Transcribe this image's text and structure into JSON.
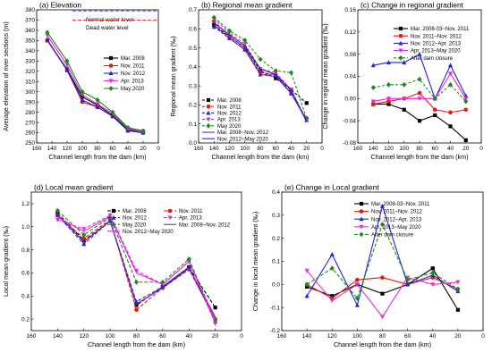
{
  "figure": {
    "colors": {
      "black": "#000000",
      "red": "#e8190f",
      "blue": "#1f24d6",
      "magenta": "#e52ad8",
      "green": "#1b8a1b",
      "purple": "#6b22c2",
      "ref_blue": "#2b44d6",
      "ref_red": "#e8190f"
    }
  },
  "chart_data": [
    {
      "id": "a",
      "type": "line",
      "title": "(a) Elevation",
      "xlabel": "Channel length from the dam (km)",
      "ylabel": "Average elevation of river sections (m)",
      "xlim": [
        160,
        0
      ],
      "ylim": [
        250,
        380
      ],
      "xticks": [
        160,
        140,
        120,
        100,
        80,
        60,
        40,
        20,
        0
      ],
      "yticks": [
        250,
        260,
        270,
        280,
        290,
        300,
        310,
        320,
        330,
        340,
        350,
        360,
        370,
        380
      ],
      "reference_lines": [
        {
          "label": "Normal water level",
          "y": 380,
          "color": "ref_blue",
          "dash": "4,2"
        },
        {
          "label": "Dead water level",
          "y": 370,
          "color": "ref_red",
          "dash": "4,2"
        }
      ],
      "legend_position": "right",
      "x": [
        146,
        120,
        100,
        80,
        60,
        40,
        20
      ],
      "series": [
        {
          "name": "Mar. 2008",
          "color": "black",
          "marker": "square",
          "values": [
            350,
            322,
            295,
            287,
            277,
            263,
            261
          ]
        },
        {
          "name": "Nov. 2011",
          "color": "red",
          "marker": "circle",
          "values": [
            350,
            321,
            290,
            285,
            276,
            262,
            260
          ]
        },
        {
          "name": "Nov. 2012",
          "color": "blue",
          "marker": "triangle-up",
          "values": [
            351,
            321,
            292,
            285,
            276,
            262,
            260
          ]
        },
        {
          "name": "Apr. 2013",
          "color": "magenta",
          "marker": "triangle-down",
          "values": [
            355,
            326,
            297,
            288,
            279,
            264,
            261
          ]
        },
        {
          "name": "May 2020",
          "color": "green",
          "marker": "diamond",
          "values": [
            358,
            330,
            300,
            292,
            280,
            265,
            262
          ]
        }
      ]
    },
    {
      "id": "b",
      "type": "line",
      "title": "(b)     Regional mean gradient",
      "xlabel": "Channel length from the dam (km)",
      "ylabel": "Regional mean gradient (‰)",
      "xlim": [
        160,
        0
      ],
      "ylim": [
        0.0,
        0.7
      ],
      "xticks": [
        160,
        140,
        120,
        100,
        80,
        60,
        40,
        20,
        0
      ],
      "yticks": [
        0.0,
        0.1,
        0.2,
        0.3,
        0.4,
        0.5,
        0.6,
        0.7
      ],
      "legend_position": "bottom-left",
      "x": [
        140,
        120,
        100,
        80,
        60,
        40,
        20
      ],
      "series": [
        {
          "name": "Mar. 2008",
          "color": "black",
          "dash": "3,2",
          "marker": "square",
          "values": [
            0.62,
            0.56,
            0.5,
            0.38,
            0.34,
            0.28,
            0.21
          ]
        },
        {
          "name": "Nov. 2011",
          "color": "red",
          "dash": "3,2",
          "marker": "circle",
          "values": [
            0.64,
            0.56,
            0.5,
            0.37,
            0.36,
            0.26,
            0.13
          ]
        },
        {
          "name": "Nov. 2012",
          "color": "blue",
          "dash": "3,2",
          "marker": "triangle-up",
          "values": [
            0.61,
            0.55,
            0.49,
            0.36,
            0.36,
            0.26,
            0.12
          ]
        },
        {
          "name": "Apr. 2013",
          "color": "magenta",
          "dash": "3,2",
          "marker": "triangle-down",
          "values": [
            0.65,
            0.58,
            0.52,
            0.39,
            0.37,
            0.28,
            0.12
          ]
        },
        {
          "name": "May 2020",
          "color": "green",
          "dash": "3,2",
          "marker": "diamond",
          "values": [
            0.66,
            0.59,
            0.54,
            0.44,
            0.38,
            0.37,
            0.13
          ]
        },
        {
          "name": "Mar. 2008~Nov. 2012",
          "color": "purple",
          "marker": "none",
          "values": [
            0.62,
            0.55,
            0.49,
            0.36,
            0.35,
            0.26,
            0.12
          ]
        },
        {
          "name": "Nov. 2012~May 2020",
          "color": "blue",
          "marker": "none",
          "values": [
            0.63,
            0.57,
            0.51,
            0.39,
            0.36,
            0.28,
            0.11
          ]
        }
      ]
    },
    {
      "id": "c",
      "type": "line",
      "title": "(c)     Change in regional  gradient",
      "xlabel": "Channel length from the dam (km)",
      "ylabel": "Change in reginal mean gradient (‰)",
      "xlim": [
        160,
        0
      ],
      "ylim": [
        -0.08,
        0.16
      ],
      "xticks": [
        160,
        140,
        120,
        100,
        80,
        60,
        40,
        20,
        0
      ],
      "yticks": [
        -0.08,
        -0.04,
        0.0,
        0.04,
        0.08,
        0.12,
        0.16
      ],
      "legend_position": "top-right",
      "x": [
        140,
        120,
        100,
        80,
        60,
        40,
        20
      ],
      "series": [
        {
          "name": "Mar. 2008-03~Nov. 2011",
          "color": "black",
          "marker": "square",
          "values": [
            -0.01,
            -0.01,
            -0.02,
            -0.04,
            -0.03,
            -0.05,
            -0.075
          ]
        },
        {
          "name": "Nov. 2011~Nov. 2012",
          "color": "red",
          "marker": "circle",
          "values": [
            -0.01,
            -0.005,
            0.0,
            0.01,
            -0.02,
            -0.025,
            -0.02
          ]
        },
        {
          "name": "Nov. 2012~Apr. 2013",
          "color": "blue",
          "marker": "triangle-up",
          "values": [
            0.06,
            0.065,
            0.065,
            0.08,
            0.0,
            0.06,
            0.005
          ]
        },
        {
          "name": "Apr. 2013~May 2020",
          "color": "magenta",
          "marker": "triangle-down",
          "values": [
            -0.005,
            0.0,
            0.0,
            0.0,
            0.0,
            0.045,
            0.0
          ]
        },
        {
          "name": "After dam closure",
          "color": "green",
          "dash": "3,2",
          "marker": "diamond",
          "values": [
            0.02,
            0.025,
            0.025,
            0.035,
            0.0,
            0.025,
            -0.005
          ]
        }
      ]
    },
    {
      "id": "d",
      "type": "line",
      "title": "(d)     Local mean gradient",
      "xlabel": "Channel length from the dam (km)",
      "ylabel": "Local mean gradient (‰)",
      "xlim": [
        160,
        0
      ],
      "ylim": [
        0.1,
        1.3
      ],
      "xticks": [
        160,
        140,
        120,
        100,
        80,
        60,
        40,
        20,
        0
      ],
      "yticks": [
        0.2,
        0.4,
        0.6,
        0.8,
        1.0,
        1.2
      ],
      "legend_position": "top-right",
      "x": [
        140,
        120,
        100,
        80,
        60,
        40,
        20
      ],
      "series": [
        {
          "name": "Mar. 2008",
          "color": "black",
          "dash": "4,2",
          "marker": "square",
          "values": [
            1.12,
            0.88,
            1.05,
            0.32,
            0.48,
            0.65,
            0.3
          ]
        },
        {
          "name": "Nov. 2011",
          "color": "red",
          "dash": "4,2",
          "marker": "circle",
          "values": [
            1.1,
            0.9,
            1.06,
            0.28,
            0.47,
            0.63,
            0.2
          ]
        },
        {
          "name": "Nov. 2012",
          "color": "blue",
          "dash": "4,2",
          "marker": "triangle-up",
          "values": [
            1.1,
            0.85,
            1.05,
            0.35,
            0.48,
            0.65,
            0.18
          ]
        },
        {
          "name": "Apr. 2013",
          "color": "magenta",
          "dash": "4,2",
          "marker": "triangle-down",
          "values": [
            1.06,
            0.98,
            1.1,
            0.62,
            0.5,
            0.7,
            0.16
          ]
        },
        {
          "name": "May 2020",
          "color": "green",
          "dash": "4,2",
          "marker": "diamond",
          "values": [
            1.14,
            0.93,
            1.08,
            0.52,
            0.52,
            0.72,
            0.19
          ]
        },
        {
          "name": "Mar. 2008~Nov. 2012",
          "color": "purple",
          "marker": "none",
          "values": [
            1.1,
            0.87,
            1.05,
            0.33,
            0.47,
            0.64,
            0.22
          ]
        },
        {
          "name": "Nov. 2012~May 2020",
          "color": "magenta",
          "marker": "none",
          "values": [
            1.08,
            0.96,
            1.09,
            0.6,
            0.5,
            0.7,
            0.18
          ]
        }
      ]
    },
    {
      "id": "e",
      "type": "line",
      "title": "(e)    Change in Local gradient",
      "xlabel": "Channel length from the dam (km)",
      "ylabel": "Change in local mean gradient (‰)",
      "xlim": [
        160,
        0
      ],
      "ylim": [
        -0.2,
        0.4
      ],
      "xticks": [
        160,
        140,
        120,
        100,
        80,
        60,
        40,
        20,
        0
      ],
      "yticks": [
        -0.2,
        -0.1,
        0.0,
        0.1,
        0.2,
        0.3,
        0.4
      ],
      "legend_position": "top-right",
      "x": [
        140,
        120,
        100,
        80,
        60,
        40,
        20
      ],
      "series": [
        {
          "name": "Mar. 2008-03~Nov. 2011",
          "color": "black",
          "marker": "square",
          "values": [
            -0.01,
            -0.05,
            0.0,
            -0.04,
            0.0,
            0.07,
            -0.11
          ]
        },
        {
          "name": "Nov. 2011~Nov. 2012",
          "color": "red",
          "marker": "circle",
          "values": [
            0.0,
            -0.06,
            0.02,
            0.03,
            0.0,
            0.03,
            -0.02
          ]
        },
        {
          "name": "Nov. 2012~Apr. 2013",
          "color": "blue",
          "marker": "triangle-up",
          "values": [
            -0.05,
            0.13,
            -0.09,
            0.34,
            0.0,
            0.04,
            -0.03
          ]
        },
        {
          "name": "Apr. 2013~May 2020",
          "color": "magenta",
          "marker": "triangle-down",
          "values": [
            0.06,
            -0.07,
            0.0,
            -0.14,
            0.03,
            0.0,
            0.01
          ]
        },
        {
          "name": "After dam closure",
          "color": "green",
          "dash": "4,2",
          "marker": "diamond",
          "values": [
            0.0,
            0.07,
            -0.06,
            0.26,
            0.02,
            0.05,
            -0.02
          ]
        }
      ]
    }
  ]
}
